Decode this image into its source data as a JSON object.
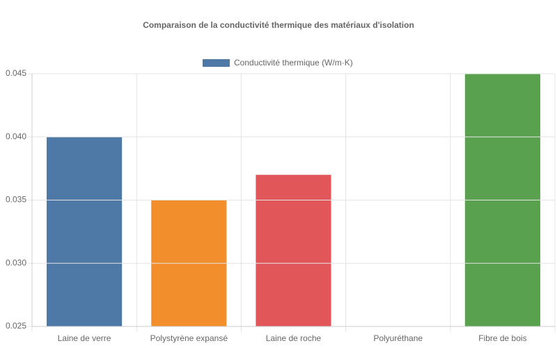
{
  "chart_data": {
    "type": "bar",
    "title": "Comparaison de la conductivité thermique des matériaux d'isolation",
    "categories": [
      "Laine de verre",
      "Polystyrène expansé",
      "Laine de roche",
      "Polyuréthane",
      "Fibre de bois"
    ],
    "series": [
      {
        "name": "Conductivité thermique (W/m·K)",
        "colors": [
          "#4e79a7",
          "#f28e2b",
          "#e15759",
          "#76b7b2",
          "#59a14f"
        ],
        "values": [
          0.04,
          0.035,
          0.037,
          0.025,
          0.045
        ]
      }
    ],
    "ylim": [
      0.025,
      0.045
    ],
    "yticks": [
      0.025,
      {
        "value": 0.03,
        "label": "0.030"
      },
      0.035,
      {
        "value": 0.04,
        "label": "0.040"
      },
      0.045
    ],
    "grid": true,
    "legend": "top"
  }
}
